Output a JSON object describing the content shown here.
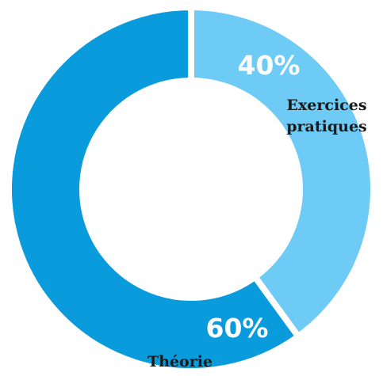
{
  "chart_data": {
    "type": "pie",
    "style": "donut",
    "slices": [
      {
        "label_lines": [
          "Exercices",
          "pratiques"
        ],
        "value": 40,
        "value_label": "40%",
        "color": "#6ecbf5"
      },
      {
        "label_lines": [
          "Théorie"
        ],
        "value": 60,
        "value_label": "60%",
        "color": "#0a9bdc"
      }
    ],
    "start": "top, clockwise",
    "separator_color": "#ffffff",
    "legend": "none"
  }
}
